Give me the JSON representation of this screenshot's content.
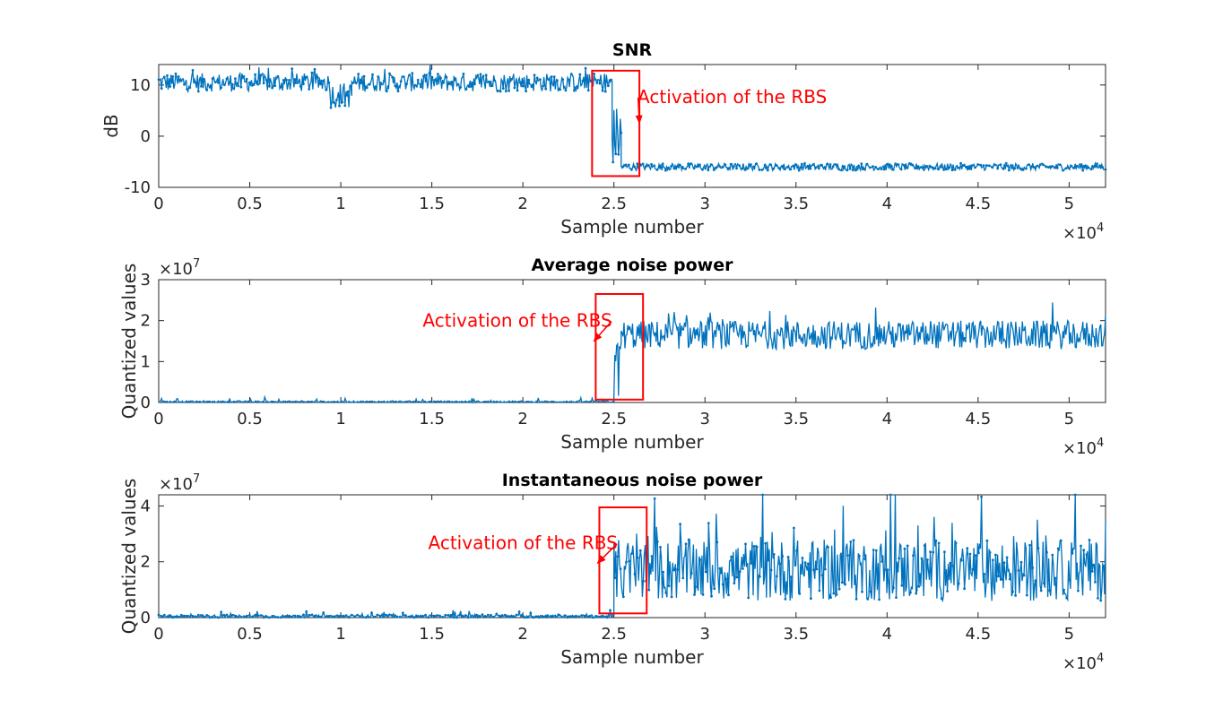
{
  "colors": {
    "series": "#0072BD",
    "annotation": "#FF0000",
    "axis": "#262626"
  },
  "exponent_base": "×10",
  "chart_data": [
    {
      "type": "line",
      "title": "SNR",
      "xlabel": "Sample number",
      "ylabel": "dB",
      "xlim": [
        0,
        52000
      ],
      "ylim": [
        -10,
        14
      ],
      "x_tick_labels": [
        "0",
        "0.5",
        "1",
        "1.5",
        "2",
        "2.5",
        "3",
        "3.5",
        "4",
        "4.5",
        "5"
      ],
      "x_ticks": [
        0,
        5000,
        10000,
        15000,
        20000,
        25000,
        30000,
        35000,
        40000,
        45000,
        50000
      ],
      "x_exponent": "4",
      "y_ticks": [
        -10,
        0,
        10
      ],
      "y_tick_labels": [
        "-10",
        "0",
        "10"
      ],
      "y_exponent": "",
      "marker": "dot",
      "series": [
        {
          "segments": [
            {
              "x0": 0,
              "x1": 9400,
              "base": 10.5,
              "amp": 1.8,
              "spike": 3
            },
            {
              "x0": 9400,
              "x1": 10600,
              "base": 8,
              "amp": 2.5,
              "spike": 3
            },
            {
              "x0": 10600,
              "x1": 24900,
              "base": 10.5,
              "amp": 1.8,
              "spike": 3
            },
            {
              "x0": 24900,
              "x1": 25400,
              "base": 0,
              "amp": 6,
              "spike": 0
            },
            {
              "x0": 25400,
              "x1": 52000,
              "base": -6,
              "amp": 0.7,
              "spike": 0
            }
          ],
          "approx_values": {
            "before_activation_db": 10.5,
            "after_activation_db": -6
          }
        }
      ],
      "annotation": {
        "text": "Activation of the RBS",
        "box_x": [
          23800,
          26400
        ],
        "box_y": [
          -7.8,
          12.8
        ],
        "arrow_to": [
          26400,
          2.5
        ],
        "text_at": [
          31500,
          6.5
        ]
      }
    },
    {
      "type": "line",
      "title": "Average noise power",
      "xlabel": "Sample number",
      "ylabel": "Quantized values",
      "xlim": [
        0,
        52000
      ],
      "ylim": [
        0,
        3
      ],
      "x_tick_labels": [
        "0",
        "0.5",
        "1",
        "1.5",
        "2",
        "2.5",
        "3",
        "3.5",
        "4",
        "4.5",
        "5"
      ],
      "x_ticks": [
        0,
        5000,
        10000,
        15000,
        20000,
        25000,
        30000,
        35000,
        40000,
        45000,
        50000
      ],
      "x_exponent": "4",
      "y_ticks": [
        0,
        1,
        2,
        3
      ],
      "y_tick_labels": [
        "0",
        "1",
        "2",
        "3"
      ],
      "y_exponent": "7",
      "marker": "none",
      "series": [
        {
          "segments": [
            {
              "x0": 0,
              "x1": 25000,
              "base": 0.02,
              "amp": 0.02,
              "spike": 0.1
            },
            {
              "x0": 25000,
              "x1": 25400,
              "base": 0.8,
              "amp": 0.8,
              "spike": 0
            },
            {
              "x0": 25400,
              "x1": 52000,
              "base": 1.65,
              "amp": 0.35,
              "spike": 0.45
            }
          ],
          "approx_values": {
            "before_activation": 0.02,
            "after_activation": 1.65
          }
        }
      ],
      "annotation": {
        "text": "Activation of the RBS",
        "box_x": [
          24000,
          26600
        ],
        "box_y": [
          0.07,
          2.65
        ],
        "arrow_to": [
          23900,
          1.5
        ],
        "text_at": [
          19700,
          1.85
        ]
      }
    },
    {
      "type": "line",
      "title": "Instantaneous noise power",
      "xlabel": "Sample number",
      "ylabel": "Quantized values",
      "xlim": [
        0,
        52000
      ],
      "ylim": [
        0,
        4.4
      ],
      "x_tick_labels": [
        "0",
        "0.5",
        "1",
        "1.5",
        "2",
        "2.5",
        "3",
        "3.5",
        "4",
        "4.5",
        "5"
      ],
      "x_ticks": [
        0,
        5000,
        10000,
        15000,
        20000,
        25000,
        30000,
        35000,
        40000,
        45000,
        50000
      ],
      "x_exponent": "4",
      "y_ticks": [
        0,
        2,
        4
      ],
      "y_tick_labels": [
        "0",
        "2",
        "4"
      ],
      "y_exponent": "7",
      "marker": "dot",
      "series": [
        {
          "segments": [
            {
              "x0": 0,
              "x1": 25000,
              "base": 0.05,
              "amp": 0.05,
              "spike": 0.2
            },
            {
              "x0": 25000,
              "x1": 52000,
              "base": 1.7,
              "amp": 1.1,
              "spike": 2.3
            }
          ],
          "approx_values": {
            "before_activation": 0.05,
            "after_activation": 1.7
          }
        }
      ],
      "annotation": {
        "text": "Activation of the RBS",
        "box_x": [
          24200,
          26800
        ],
        "box_y": [
          0.15,
          3.95
        ],
        "arrow_to": [
          24100,
          1.95
        ],
        "text_at": [
          20000,
          2.45
        ]
      }
    }
  ]
}
